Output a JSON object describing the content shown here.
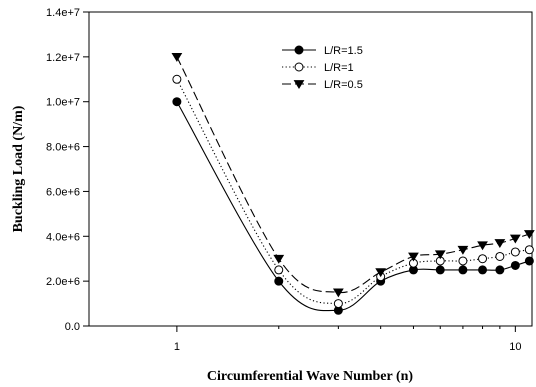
{
  "chart_data": {
    "type": "line",
    "title": "",
    "xlabel": "Circumferential Wave Number (n)",
    "ylabel": "Buckling Load (N/m)",
    "xscale": "log",
    "xlim": [
      0.55,
      11.2
    ],
    "ylim": [
      0,
      14000000
    ],
    "x_ticks": [
      1,
      10
    ],
    "x_tick_labels": [
      "1",
      "10"
    ],
    "y_ticks": [
      0,
      2000000,
      4000000,
      6000000,
      8000000,
      10000000,
      12000000,
      14000000
    ],
    "y_tick_labels": [
      "0.0",
      "2.0e+6",
      "4.0e+6",
      "6.0e+6",
      "8.0e+6",
      "1.0e+7",
      "1.2e+7",
      "1.4e+7"
    ],
    "legend_position": "top-center",
    "x": [
      1,
      2,
      3,
      4,
      5,
      6,
      7,
      8,
      9,
      10,
      11
    ],
    "series": [
      {
        "name": "L/R=1.5",
        "marker": "filled-circle",
        "line_style": "solid",
        "values": [
          10000000,
          2000000,
          700000,
          2000000,
          2500000,
          2500000,
          2500000,
          2500000,
          2500000,
          2700000,
          2900000
        ]
      },
      {
        "name": "L/R=1",
        "marker": "open-circle",
        "line_style": "dotted",
        "values": [
          11000000,
          2500000,
          1000000,
          2200000,
          2800000,
          2900000,
          2900000,
          3000000,
          3100000,
          3300000,
          3400000
        ]
      },
      {
        "name": "L/R=0.5",
        "marker": "filled-triangle-down",
        "line_style": "dashed",
        "values": [
          12000000,
          3000000,
          1500000,
          2400000,
          3100000,
          3200000,
          3400000,
          3600000,
          3700000,
          3900000,
          4100000
        ]
      }
    ]
  }
}
